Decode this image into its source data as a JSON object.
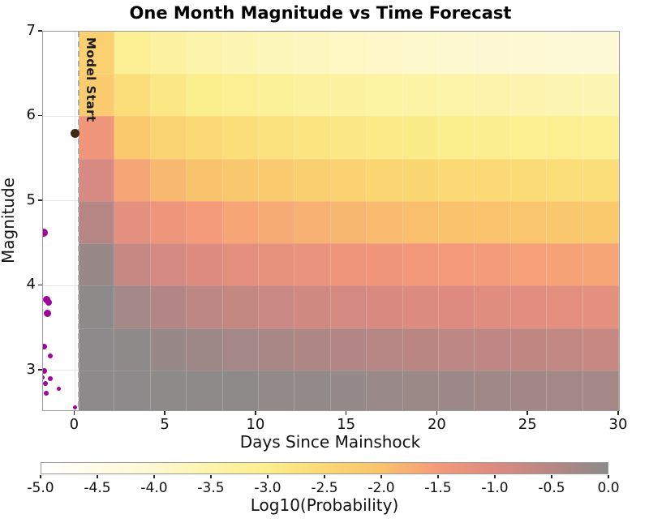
{
  "chart_data": {
    "type": "heatmap",
    "title": "One Month Magnitude vs Time Forecast",
    "xlabel": "Days Since Mainshock",
    "ylabel": "Magnitude",
    "xlim": [
      -1.76,
      30
    ],
    "ylim": [
      2.53,
      7.0
    ],
    "x_ticks": [
      0,
      5,
      10,
      15,
      20,
      25,
      30
    ],
    "x_tick_labels": [
      "0",
      "5",
      "10",
      "15",
      "20",
      "25",
      "30"
    ],
    "y_ticks": [
      3,
      4,
      5,
      6,
      7
    ],
    "y_tick_labels": [
      "3",
      "4",
      "5",
      "6",
      "7"
    ],
    "y_gridlines": [
      3,
      4,
      5,
      6
    ],
    "x_gridlines": [
      0
    ],
    "heatmap": {
      "col_day_edges": [
        0.2,
        2.19,
        4.18,
        6.16,
        8.15,
        10.14,
        12.12,
        14.11,
        16.1,
        18.08,
        20.07,
        22.05,
        24.04,
        26.03,
        28.01,
        30.0
      ],
      "row_mag_edges": [
        7.0,
        6.5,
        6.0,
        5.5,
        5.0,
        4.5,
        4.0,
        3.5,
        3.0,
        2.5
      ],
      "log10_probability": [
        [
          -2.3,
          -3.13,
          -3.36,
          -3.51,
          -3.62,
          -3.71,
          -3.78,
          -3.84,
          -3.9,
          -3.95,
          -3.99,
          -4.03,
          -4.06,
          -4.1,
          -4.13
        ],
        [
          -2.18,
          -2.63,
          -2.86,
          -3.01,
          -3.12,
          -3.21,
          -3.28,
          -3.34,
          -3.4,
          -3.45,
          -3.49,
          -3.53,
          -3.56,
          -3.6,
          -3.63
        ],
        [
          -1.41,
          -2.14,
          -2.36,
          -2.51,
          -2.62,
          -2.71,
          -2.78,
          -2.84,
          -2.9,
          -2.95,
          -2.99,
          -3.03,
          -3.06,
          -3.1,
          -3.13
        ],
        [
          -0.92,
          -1.64,
          -1.86,
          -2.01,
          -2.12,
          -2.21,
          -2.28,
          -2.34,
          -2.4,
          -2.45,
          -2.49,
          -2.53,
          -2.56,
          -2.6,
          -2.63
        ],
        [
          -0.48,
          -1.15,
          -1.37,
          -1.52,
          -1.63,
          -1.71,
          -1.78,
          -1.85,
          -1.9,
          -1.95,
          -1.99,
          -2.03,
          -2.07,
          -2.1,
          -2.13
        ],
        [
          -0.14,
          -0.68,
          -0.89,
          -1.03,
          -1.14,
          -1.22,
          -1.29,
          -1.35,
          -1.41,
          -1.45,
          -1.5,
          -1.53,
          -1.57,
          -1.6,
          -1.63
        ],
        [
          -0.01,
          -0.28,
          -0.45,
          -0.58,
          -0.67,
          -0.75,
          -0.82,
          -0.87,
          -0.93,
          -0.97,
          -1.01,
          -1.05,
          -1.08,
          -1.12,
          -1.15
        ],
        [
          0.0,
          -0.04,
          -0.13,
          -0.21,
          -0.27,
          -0.33,
          -0.39,
          -0.44,
          -0.48,
          -0.52,
          -0.56,
          -0.59,
          -0.62,
          -0.65,
          -0.68
        ],
        [
          0.0,
          0.0,
          -0.01,
          -0.02,
          -0.04,
          -0.07,
          -0.09,
          -0.12,
          -0.15,
          -0.17,
          -0.19,
          -0.22,
          -0.24,
          -0.26,
          -0.28
        ]
      ]
    },
    "colorbar": {
      "label": "Log10(Probability)",
      "min": -5.0,
      "max": 0.0,
      "ticks": [
        -5.0,
        -4.5,
        -4.0,
        -3.5,
        -3.0,
        -2.5,
        -2.0,
        -1.5,
        -1.0,
        -0.5,
        0.0
      ],
      "tick_labels": [
        "-5.0",
        "-4.5",
        "-4.0",
        "-3.5",
        "-3.0",
        "-2.5",
        "-2.0",
        "-1.5",
        "-1.0",
        "-0.5",
        "0.0"
      ],
      "stops": [
        {
          "value": -5.0,
          "color": "#FFFFFF"
        },
        {
          "value": -4.5,
          "color": "#FFFCE8"
        },
        {
          "value": -4.0,
          "color": "#FEF8D1"
        },
        {
          "value": -3.5,
          "color": "#FCF4A9"
        },
        {
          "value": -3.0,
          "color": "#FBEE8C"
        },
        {
          "value": -2.5,
          "color": "#FBD974"
        },
        {
          "value": -2.0,
          "color": "#F9C36C"
        },
        {
          "value": -1.5,
          "color": "#F49A7A"
        },
        {
          "value": -1.0,
          "color": "#DD8B80"
        },
        {
          "value": -0.5,
          "color": "#B78684"
        },
        {
          "value": 0.0,
          "color": "#8C8A8A"
        }
      ]
    },
    "annotation": {
      "model_start_label": "Model Start",
      "model_start_day": 0.2,
      "line_color": "#A9A9A9"
    },
    "mainshock": {
      "day": 0,
      "magnitude": 5.8,
      "size": 11,
      "color": "#3F2A12"
    },
    "prior_event_color": "#9C069C",
    "prior_events": [
      {
        "day": -1.7,
        "magnitude": 4.63,
        "size": 10
      },
      {
        "day": -1.58,
        "magnitude": 3.84,
        "size": 9
      },
      {
        "day": -1.44,
        "magnitude": 3.8,
        "size": 8
      },
      {
        "day": -1.52,
        "magnitude": 3.67,
        "size": 9
      },
      {
        "day": -1.7,
        "magnitude": 3.28,
        "size": 7
      },
      {
        "day": -1.36,
        "magnitude": 3.17,
        "size": 6
      },
      {
        "day": -1.7,
        "magnitude": 2.99,
        "size": 7
      },
      {
        "day": -1.78,
        "magnitude": 2.92,
        "size": 5
      },
      {
        "day": -1.36,
        "magnitude": 2.9,
        "size": 6
      },
      {
        "day": -1.62,
        "magnitude": 2.85,
        "size": 6
      },
      {
        "day": -0.9,
        "magnitude": 2.78,
        "size": 5
      },
      {
        "day": -1.58,
        "magnitude": 2.73,
        "size": 6
      },
      {
        "day": 0.02,
        "magnitude": 2.56,
        "size": 5
      }
    ]
  }
}
